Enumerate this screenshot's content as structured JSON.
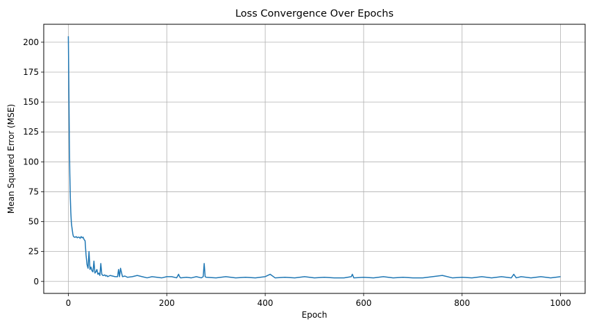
{
  "chart_data": {
    "type": "line",
    "title": "Loss Convergence Over Epochs",
    "xlabel": "Epoch",
    "ylabel": "Mean Squared Error (MSE)",
    "xlim": [
      -50,
      1050
    ],
    "ylim": [
      -10,
      215
    ],
    "xticks": [
      0,
      200,
      400,
      600,
      800,
      1000
    ],
    "yticks": [
      0,
      25,
      50,
      75,
      100,
      125,
      150,
      175,
      200
    ],
    "xtick_labels": [
      "0",
      "200",
      "400",
      "600",
      "800",
      "1000"
    ],
    "ytick_labels": [
      "0",
      "25",
      "50",
      "75",
      "100",
      "125",
      "150",
      "175",
      "200"
    ],
    "grid": true,
    "legend": "none",
    "colors": {
      "line": "#1f77b4",
      "grid": "#b0b0b0"
    },
    "series": [
      {
        "x": [
          0,
          1,
          2,
          3,
          4,
          5,
          6,
          7,
          8,
          9,
          10,
          12,
          14,
          16,
          18,
          20,
          22,
          24,
          26,
          28,
          30,
          32,
          34,
          36,
          38,
          40,
          42,
          44,
          46,
          48,
          50,
          52,
          54,
          56,
          58,
          60,
          62,
          64,
          66,
          68,
          70,
          72,
          74,
          76,
          78,
          80,
          85,
          90,
          95,
          100,
          102,
          104,
          106,
          110,
          115,
          120,
          130,
          140,
          150,
          160,
          170,
          180,
          190,
          200,
          210,
          220,
          224,
          226,
          228,
          240,
          250,
          260,
          270,
          274,
          276,
          278,
          280,
          300,
          320,
          340,
          360,
          380,
          400,
          410,
          420,
          440,
          460,
          480,
          500,
          520,
          540,
          560,
          575,
          577,
          580,
          600,
          620,
          640,
          660,
          680,
          700,
          720,
          740,
          760,
          780,
          800,
          820,
          840,
          860,
          880,
          900,
          905,
          910,
          920,
          940,
          960,
          980,
          1000
        ],
        "y": [
          205,
          165,
          120,
          90,
          70,
          58,
          50,
          46,
          43,
          40,
          38,
          37,
          37,
          37.5,
          36.5,
          37,
          37,
          36,
          37.5,
          36.5,
          37,
          35,
          34,
          22,
          14,
          11,
          25,
          10,
          12,
          9,
          8,
          17,
          7,
          8,
          10,
          6,
          7,
          5,
          15,
          6,
          5,
          5,
          5.5,
          4.5,
          5,
          4,
          5,
          4.5,
          4,
          4,
          10,
          4,
          11,
          4,
          4.5,
          3.5,
          4,
          5,
          4,
          3,
          4,
          3.5,
          3,
          4,
          4,
          3,
          6,
          4,
          3,
          3.5,
          3,
          4,
          3,
          4,
          15,
          4,
          3.5,
          3,
          4,
          3,
          3.5,
          3,
          4,
          6,
          3,
          3.5,
          3,
          4,
          3,
          3.5,
          3,
          3,
          4,
          6,
          3,
          3.5,
          3,
          4,
          3,
          3.5,
          3,
          3,
          4,
          5,
          3,
          3.5,
          3,
          4,
          3,
          4,
          3,
          6,
          3,
          4,
          3,
          4,
          3,
          4
        ]
      }
    ]
  }
}
